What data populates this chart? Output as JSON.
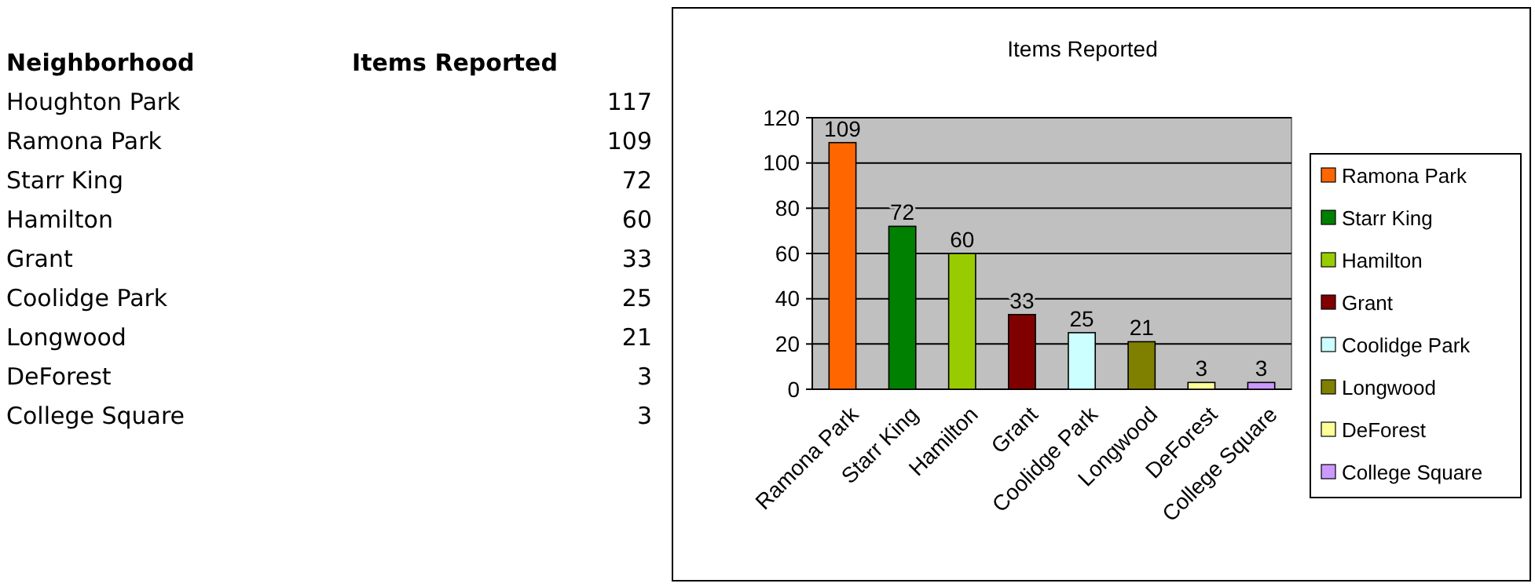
{
  "chart_data": [
    {
      "type": "other",
      "annotations": [
        "Neighborhood",
        "Items Reported",
        "Houghton Park",
        "117",
        "Ramona Park",
        "109",
        "Starr King",
        "72",
        "Hamilton",
        "60",
        "Grant",
        "33",
        "Coolidge Park",
        "25",
        "Longwood",
        "21",
        "DeForest",
        "3",
        "College Square",
        "3"
      ]
    },
    {
      "type": "bar",
      "title": "Items Reported",
      "stacked": true,
      "categories": [
        "Ramona Park",
        "Starr King",
        "Hamilton",
        "Grant",
        "Coolidge Park",
        "Longwood",
        "DeForest",
        "College Square"
      ],
      "series": [
        {
          "name": "Ramona Park",
          "color": "#ff6600",
          "values": [
            109,
            null,
            null,
            null,
            null,
            null,
            null,
            null
          ]
        },
        {
          "name": "Starr King",
          "color": "#008000",
          "values": [
            null,
            72,
            null,
            null,
            null,
            null,
            null,
            null
          ]
        },
        {
          "name": "Hamilton",
          "color": "#99cc00",
          "values": [
            null,
            null,
            60,
            null,
            null,
            null,
            null,
            null
          ]
        },
        {
          "name": "Grant",
          "color": "#800000",
          "values": [
            null,
            null,
            null,
            33,
            null,
            null,
            null,
            null
          ]
        },
        {
          "name": "Coolidge Park",
          "color": "#ccffff",
          "values": [
            null,
            null,
            null,
            null,
            25,
            null,
            null,
            null
          ]
        },
        {
          "name": "Longwood",
          "color": "#808000",
          "values": [
            null,
            null,
            null,
            null,
            null,
            21,
            null,
            null
          ]
        },
        {
          "name": "DeForest",
          "color": "#ffff99",
          "values": [
            null,
            null,
            null,
            null,
            null,
            null,
            3,
            null
          ]
        },
        {
          "name": "College Square",
          "color": "#cc99ff",
          "values": [
            null,
            null,
            null,
            null,
            null,
            null,
            null,
            3
          ]
        }
      ],
      "ylim": [
        0,
        120
      ],
      "yticks": [
        0,
        20,
        40,
        60,
        80,
        100,
        120
      ],
      "grid": "y",
      "legend": "right",
      "data_labels": true
    }
  ]
}
